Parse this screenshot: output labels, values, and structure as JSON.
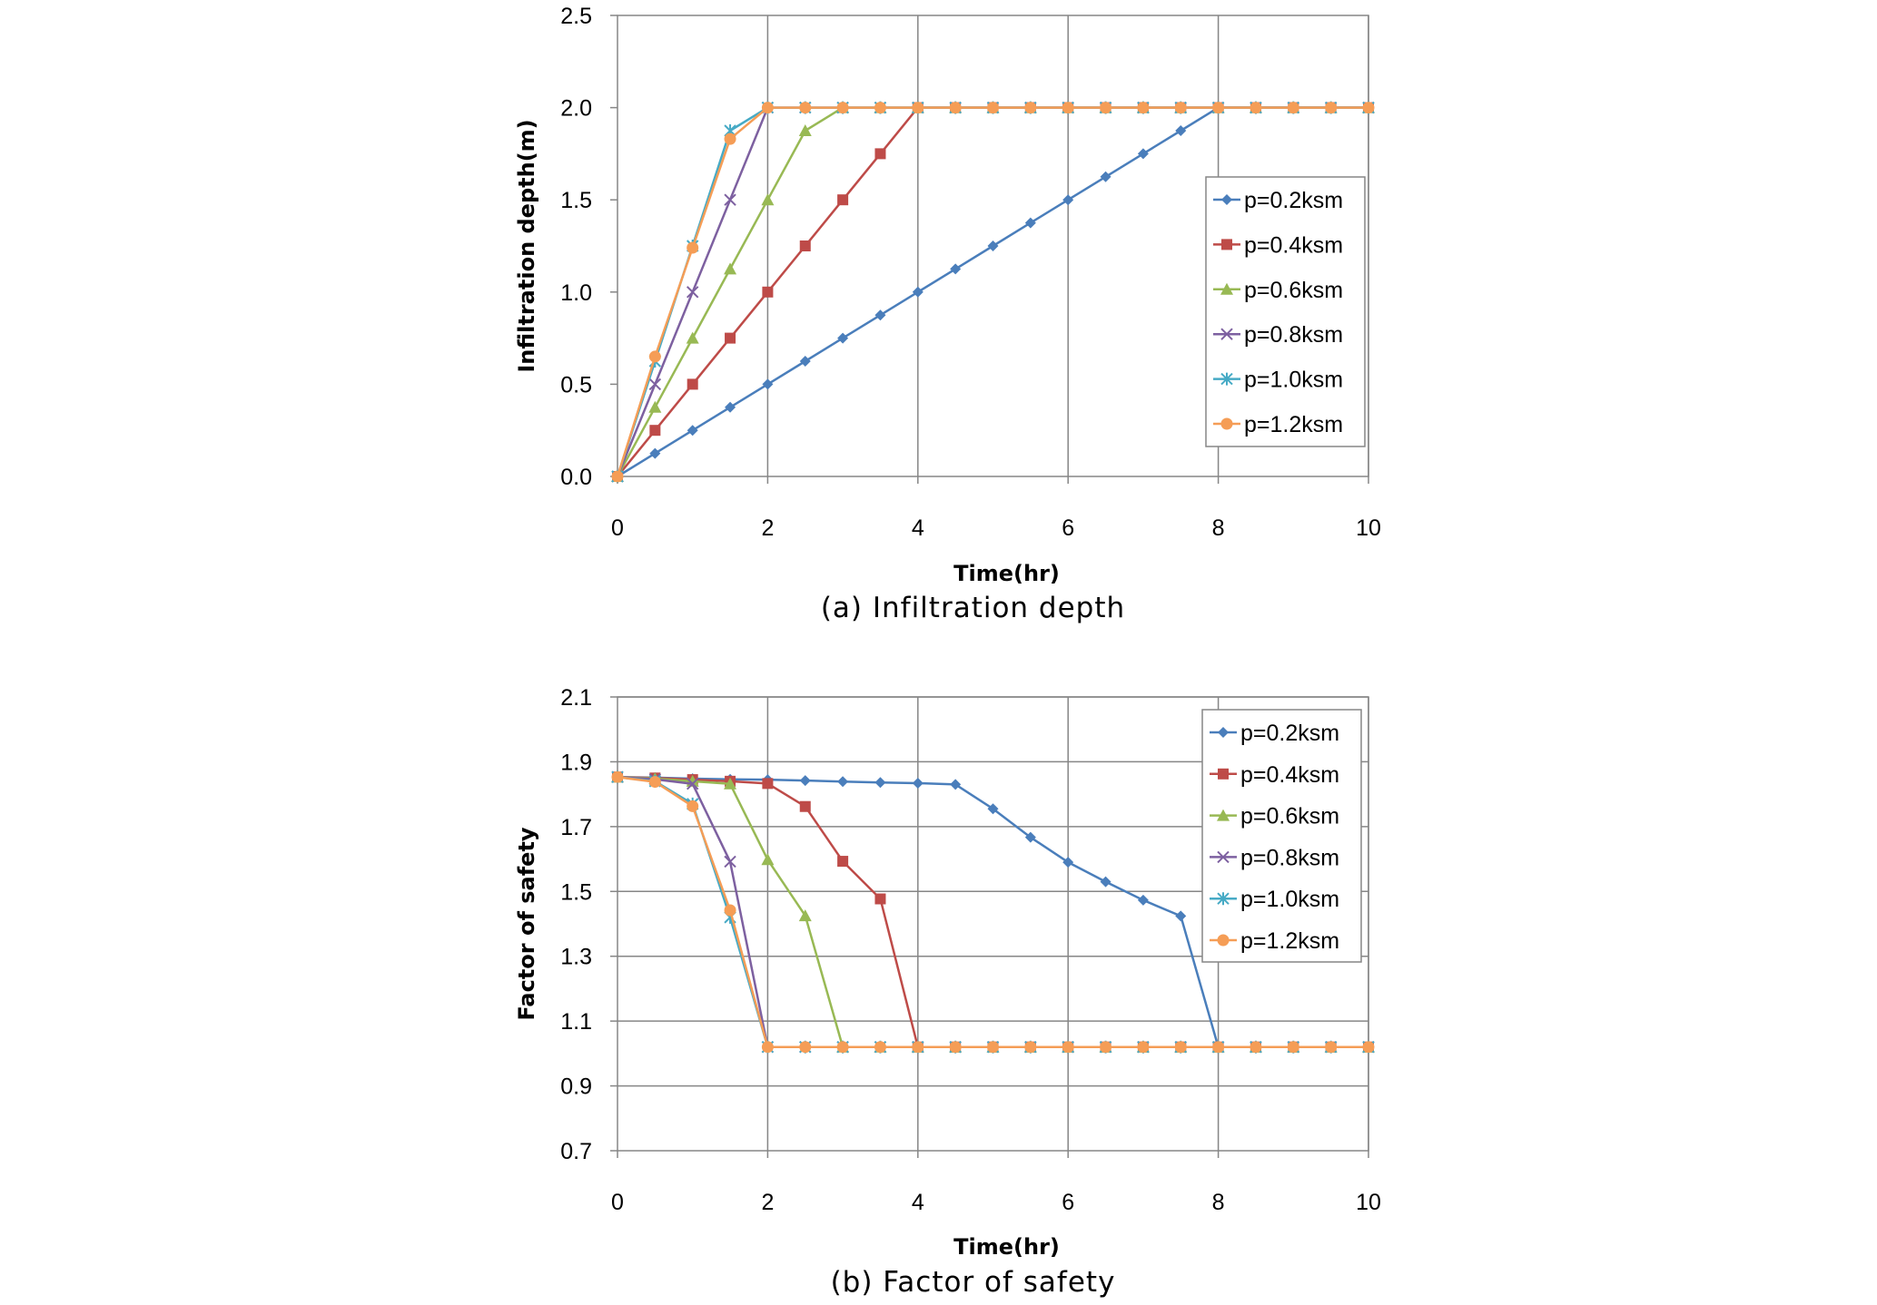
{
  "chart_data": [
    {
      "type": "line",
      "caption": "(a) Infiltration depth",
      "xlabel": "Time(hr)",
      "ylabel": "Infiltration depth(m)",
      "xlim": [
        0,
        10
      ],
      "ylim": [
        0,
        2.5
      ],
      "xticks": [
        0,
        2,
        4,
        6,
        8,
        10
      ],
      "yticks": [
        0.0,
        0.5,
        1.0,
        1.5,
        2.0,
        2.5
      ],
      "ytick_decimals": 1,
      "grid": "vertical",
      "legend_position": "right",
      "series": [
        {
          "name": "p=0.2ksm",
          "color": "#4a7ebb",
          "marker": "diamond",
          "x": [
            0,
            0.5,
            1,
            1.5,
            2,
            2.5,
            3,
            3.5,
            4,
            4.5,
            5,
            5.5,
            6,
            6.5,
            7,
            7.5,
            8,
            8.5,
            9,
            9.5,
            10
          ],
          "y": [
            0,
            0.125,
            0.25,
            0.375,
            0.5,
            0.625,
            0.75,
            0.875,
            1.0,
            1.125,
            1.25,
            1.375,
            1.5,
            1.625,
            1.75,
            1.875,
            2.0,
            2.0,
            2.0,
            2.0,
            2.0
          ]
        },
        {
          "name": "p=0.4ksm",
          "color": "#be4b48",
          "marker": "square",
          "x": [
            0,
            0.5,
            1,
            1.5,
            2,
            2.5,
            3,
            3.5,
            4,
            4.5,
            5,
            5.5,
            6,
            6.5,
            7,
            7.5,
            8,
            8.5,
            9,
            9.5,
            10
          ],
          "y": [
            0,
            0.25,
            0.5,
            0.75,
            1.0,
            1.25,
            1.5,
            1.75,
            2.0,
            2.0,
            2.0,
            2.0,
            2.0,
            2.0,
            2.0,
            2.0,
            2.0,
            2.0,
            2.0,
            2.0,
            2.0
          ]
        },
        {
          "name": "p=0.6ksm",
          "color": "#98b954",
          "marker": "triangle",
          "x": [
            0,
            0.5,
            1,
            1.5,
            2,
            2.5,
            3,
            3.5,
            4,
            4.5,
            5,
            5.5,
            6,
            6.5,
            7,
            7.5,
            8,
            8.5,
            9,
            9.5,
            10
          ],
          "y": [
            0,
            0.375,
            0.75,
            1.125,
            1.5,
            1.875,
            2.0,
            2.0,
            2.0,
            2.0,
            2.0,
            2.0,
            2.0,
            2.0,
            2.0,
            2.0,
            2.0,
            2.0,
            2.0,
            2.0,
            2.0
          ]
        },
        {
          "name": "p=0.8ksm",
          "color": "#7d60a0",
          "marker": "x",
          "x": [
            0,
            0.5,
            1,
            1.5,
            2,
            2.5,
            3,
            3.5,
            4,
            4.5,
            5,
            5.5,
            6,
            6.5,
            7,
            7.5,
            8,
            8.5,
            9,
            9.5,
            10
          ],
          "y": [
            0,
            0.5,
            1.0,
            1.5,
            2.0,
            2.0,
            2.0,
            2.0,
            2.0,
            2.0,
            2.0,
            2.0,
            2.0,
            2.0,
            2.0,
            2.0,
            2.0,
            2.0,
            2.0,
            2.0,
            2.0
          ]
        },
        {
          "name": "p=1.0ksm",
          "color": "#46aac5",
          "marker": "star",
          "x": [
            0,
            0.5,
            1,
            1.5,
            2,
            2.5,
            3,
            3.5,
            4,
            4.5,
            5,
            5.5,
            6,
            6.5,
            7,
            7.5,
            8,
            8.5,
            9,
            9.5,
            10
          ],
          "y": [
            0,
            0.625,
            1.25,
            1.875,
            2.0,
            2.0,
            2.0,
            2.0,
            2.0,
            2.0,
            2.0,
            2.0,
            2.0,
            2.0,
            2.0,
            2.0,
            2.0,
            2.0,
            2.0,
            2.0,
            2.0
          ]
        },
        {
          "name": "p=1.2ksm",
          "color": "#f59d56",
          "marker": "circle",
          "x": [
            0,
            0.5,
            1,
            1.5,
            2,
            2.5,
            3,
            3.5,
            4,
            4.5,
            5,
            5.5,
            6,
            6.5,
            7,
            7.5,
            8,
            8.5,
            9,
            9.5,
            10
          ],
          "y": [
            0,
            0.65,
            1.24,
            1.83,
            2.0,
            2.0,
            2.0,
            2.0,
            2.0,
            2.0,
            2.0,
            2.0,
            2.0,
            2.0,
            2.0,
            2.0,
            2.0,
            2.0,
            2.0,
            2.0,
            2.0
          ]
        }
      ]
    },
    {
      "type": "line",
      "caption": "(b) Factor of safety",
      "xlabel": "Time(hr)",
      "ylabel": "Factor of safety",
      "xlim": [
        0,
        10
      ],
      "ylim": [
        0.7,
        2.1
      ],
      "xticks": [
        0,
        2,
        4,
        6,
        8,
        10
      ],
      "yticks": [
        0.7,
        0.9,
        1.1,
        1.3,
        1.5,
        1.7,
        1.9,
        2.1
      ],
      "ytick_decimals": 1,
      "grid": "both",
      "legend_position": "top-right",
      "series": [
        {
          "name": "p=0.2ksm",
          "color": "#4a7ebb",
          "marker": "diamond",
          "x": [
            0,
            0.5,
            1,
            1.5,
            2,
            2.5,
            3,
            3.5,
            4,
            4.5,
            5,
            5.5,
            6,
            6.5,
            7,
            7.5,
            8,
            8.5,
            9,
            9.5,
            10
          ],
          "y": [
            1.853,
            1.851,
            1.848,
            1.846,
            1.845,
            1.842,
            1.839,
            1.836,
            1.834,
            1.83,
            1.755,
            1.667,
            1.59,
            1.53,
            1.473,
            1.424,
            1.02,
            1.02,
            1.02,
            1.02,
            1.02
          ]
        },
        {
          "name": "p=0.4ksm",
          "color": "#be4b48",
          "marker": "square",
          "x": [
            0,
            0.5,
            1,
            1.5,
            2,
            2.5,
            3,
            3.5,
            4,
            4.5,
            5,
            5.5,
            6,
            6.5,
            7,
            7.5,
            8,
            8.5,
            9,
            9.5,
            10
          ],
          "y": [
            1.853,
            1.85,
            1.845,
            1.84,
            1.833,
            1.762,
            1.593,
            1.477,
            1.02,
            1.02,
            1.02,
            1.02,
            1.02,
            1.02,
            1.02,
            1.02,
            1.02,
            1.02,
            1.02,
            1.02,
            1.02
          ]
        },
        {
          "name": "p=0.6ksm",
          "color": "#98b954",
          "marker": "triangle",
          "x": [
            0,
            0.5,
            1,
            1.5,
            2,
            2.5,
            3,
            3.5,
            4,
            4.5,
            5,
            5.5,
            6,
            6.5,
            7,
            7.5,
            8,
            8.5,
            9,
            9.5,
            10
          ],
          "y": [
            1.853,
            1.848,
            1.84,
            1.832,
            1.598,
            1.425,
            1.02,
            1.02,
            1.02,
            1.02,
            1.02,
            1.02,
            1.02,
            1.02,
            1.02,
            1.02,
            1.02,
            1.02,
            1.02,
            1.02,
            1.02
          ]
        },
        {
          "name": "p=0.8ksm",
          "color": "#7d60a0",
          "marker": "x",
          "x": [
            0,
            0.5,
            1,
            1.5,
            2,
            2.5,
            3,
            3.5,
            4,
            4.5,
            5,
            5.5,
            6,
            6.5,
            7,
            7.5,
            8,
            8.5,
            9,
            9.5,
            10
          ],
          "y": [
            1.853,
            1.846,
            1.832,
            1.592,
            1.02,
            1.02,
            1.02,
            1.02,
            1.02,
            1.02,
            1.02,
            1.02,
            1.02,
            1.02,
            1.02,
            1.02,
            1.02,
            1.02,
            1.02,
            1.02,
            1.02
          ]
        },
        {
          "name": "p=1.0ksm",
          "color": "#46aac5",
          "marker": "star",
          "x": [
            0,
            0.5,
            1,
            1.5,
            2,
            2.5,
            3,
            3.5,
            4,
            4.5,
            5,
            5.5,
            6,
            6.5,
            7,
            7.5,
            8,
            8.5,
            9,
            9.5,
            10
          ],
          "y": [
            1.853,
            1.84,
            1.77,
            1.42,
            1.02,
            1.02,
            1.02,
            1.02,
            1.02,
            1.02,
            1.02,
            1.02,
            1.02,
            1.02,
            1.02,
            1.02,
            1.02,
            1.02,
            1.02,
            1.02,
            1.02
          ]
        },
        {
          "name": "p=1.2ksm",
          "color": "#f59d56",
          "marker": "circle",
          "x": [
            0,
            0.5,
            1,
            1.5,
            2,
            2.5,
            3,
            3.5,
            4,
            4.5,
            5,
            5.5,
            6,
            6.5,
            7,
            7.5,
            8,
            8.5,
            9,
            9.5,
            10
          ],
          "y": [
            1.853,
            1.838,
            1.763,
            1.442,
            1.02,
            1.02,
            1.02,
            1.02,
            1.02,
            1.02,
            1.02,
            1.02,
            1.02,
            1.02,
            1.02,
            1.02,
            1.02,
            1.02,
            1.02,
            1.02,
            1.02
          ]
        }
      ]
    }
  ]
}
